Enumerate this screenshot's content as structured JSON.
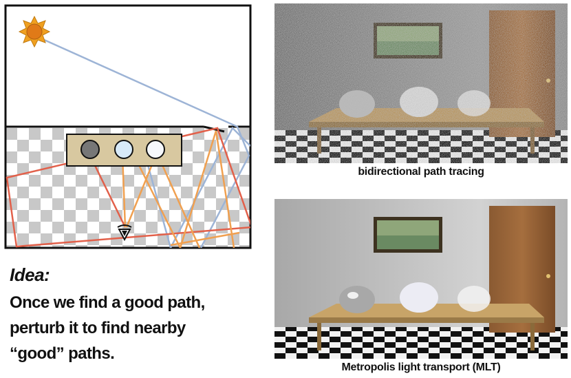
{
  "idea": {
    "title": "Idea:",
    "lines": [
      "Once we find a good path,",
      "perturb it to find nearby",
      "“good” paths."
    ]
  },
  "renders": [
    {
      "caption": "bidirectional path tracing",
      "noisy": true
    },
    {
      "caption": "Metropolis light transport (MLT)",
      "noisy": false
    }
  ],
  "colors": {
    "light_path": "#9db4d6",
    "red_path": "#e2604a",
    "orange_path": "#f0a050",
    "sun_fill": "#f0a020",
    "sun_core": "#e07a18",
    "box_fill": "#d8c8a0",
    "checker_dark": "#c8c8c8",
    "checker_light": "#ffffff"
  },
  "icons": [
    "sun-icon",
    "eye-icon"
  ]
}
